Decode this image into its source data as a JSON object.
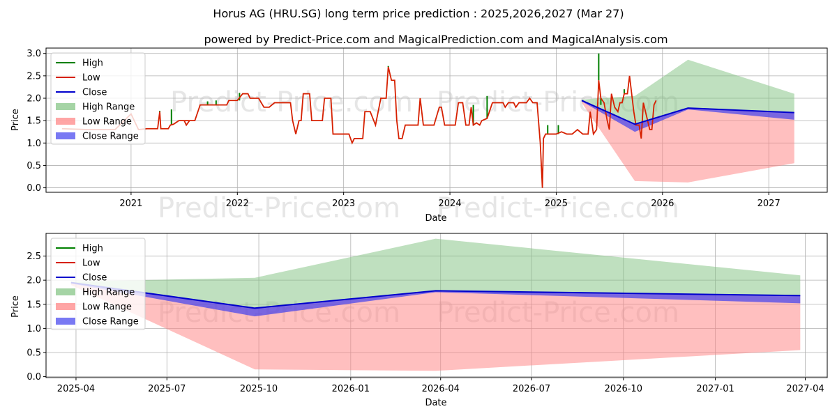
{
  "title": "Horus AG (HRU.SG) long term price prediction : 2025,2026,2027 (Mar 27)",
  "subtitle": "powered by Predict-Price.com and MagicalPrediction.com and MagicalAnalysis.com",
  "watermark": "Predict-Price.com",
  "colors": {
    "high": "#008000",
    "low": "#d62000",
    "close": "#0000cc",
    "high_range": "#7fc27f",
    "low_range": "#ff7f7f",
    "close_range": "#4040ee"
  },
  "legend": {
    "high": "High",
    "low": "Low",
    "close": "Close",
    "high_range": "High Range",
    "low_range": "Low Range",
    "close_range": "Close Range"
  },
  "chart_data": [
    {
      "type": "line",
      "panel": "top",
      "xlabel": "Date",
      "ylabel": "Price",
      "xlim": [
        2020.2,
        2027.55
      ],
      "ylim": [
        -0.1,
        3.12
      ],
      "grid": true,
      "legend_position": "upper-left",
      "x_ticks": [
        2021,
        2022,
        2023,
        2024,
        2025,
        2026,
        2027
      ],
      "x_tick_labels": [
        "2021",
        "2022",
        "2023",
        "2024",
        "2025",
        "2026",
        "2027"
      ],
      "y_ticks": [
        0.0,
        0.5,
        1.0,
        1.5,
        2.0,
        2.5,
        3.0
      ],
      "y_tick_labels": [
        "0.0",
        "0.5",
        "1.0",
        "1.5",
        "2.0",
        "2.5",
        "3.0"
      ],
      "history": {
        "low_close": [
          [
            2020.35,
            1.32
          ],
          [
            2020.6,
            1.3
          ],
          [
            2020.85,
            1.3
          ],
          [
            2021.0,
            1.65
          ],
          [
            2021.07,
            1.3
          ],
          [
            2021.15,
            1.32
          ],
          [
            2021.25,
            1.32
          ],
          [
            2021.27,
            1.7
          ],
          [
            2021.28,
            1.32
          ],
          [
            2021.35,
            1.32
          ],
          [
            2021.37,
            1.4
          ],
          [
            2021.4,
            1.42
          ],
          [
            2021.45,
            1.5
          ],
          [
            2021.5,
            1.5
          ],
          [
            2021.52,
            1.4
          ],
          [
            2021.55,
            1.5
          ],
          [
            2021.5,
            1.5
          ],
          [
            2021.6,
            1.5
          ],
          [
            2021.65,
            1.85
          ],
          [
            2021.7,
            1.85
          ],
          [
            2021.75,
            1.85
          ],
          [
            2021.85,
            1.85
          ],
          [
            2021.9,
            1.85
          ],
          [
            2021.92,
            1.95
          ],
          [
            2022.0,
            1.95
          ],
          [
            2022.05,
            2.1
          ],
          [
            2022.1,
            2.1
          ],
          [
            2022.12,
            2.0
          ],
          [
            2022.2,
            2.0
          ],
          [
            2022.25,
            1.8
          ],
          [
            2022.3,
            1.8
          ],
          [
            2022.35,
            1.9
          ],
          [
            2022.45,
            1.9
          ],
          [
            2022.5,
            1.9
          ],
          [
            2022.52,
            1.5
          ],
          [
            2022.55,
            1.2
          ],
          [
            2022.58,
            1.5
          ],
          [
            2022.6,
            1.5
          ],
          [
            2022.62,
            2.1
          ],
          [
            2022.65,
            2.1
          ],
          [
            2022.68,
            2.1
          ],
          [
            2022.7,
            1.5
          ],
          [
            2022.75,
            1.5
          ],
          [
            2022.8,
            1.5
          ],
          [
            2022.82,
            2.0
          ],
          [
            2022.88,
            2.0
          ],
          [
            2022.9,
            1.2
          ],
          [
            2022.95,
            1.2
          ],
          [
            2023.0,
            1.2
          ],
          [
            2023.05,
            1.2
          ],
          [
            2023.08,
            1.0
          ],
          [
            2023.1,
            1.1
          ],
          [
            2023.15,
            1.1
          ],
          [
            2023.18,
            1.1
          ],
          [
            2023.2,
            1.7
          ],
          [
            2023.25,
            1.7
          ],
          [
            2023.3,
            1.4
          ],
          [
            2023.35,
            2.0
          ],
          [
            2023.4,
            2.0
          ],
          [
            2023.42,
            2.7
          ],
          [
            2023.45,
            2.4
          ],
          [
            2023.48,
            2.4
          ],
          [
            2023.5,
            1.5
          ],
          [
            2023.52,
            1.1
          ],
          [
            2023.55,
            1.1
          ],
          [
            2023.58,
            1.4
          ],
          [
            2023.65,
            1.4
          ],
          [
            2023.7,
            1.4
          ],
          [
            2023.72,
            2.0
          ],
          [
            2023.75,
            1.4
          ],
          [
            2023.8,
            1.4
          ],
          [
            2023.85,
            1.4
          ],
          [
            2023.9,
            1.8
          ],
          [
            2023.92,
            1.8
          ],
          [
            2023.95,
            1.4
          ],
          [
            2024.0,
            1.4
          ],
          [
            2024.05,
            1.4
          ],
          [
            2024.08,
            1.9
          ],
          [
            2024.12,
            1.9
          ],
          [
            2024.15,
            1.4
          ],
          [
            2024.18,
            1.4
          ],
          [
            2024.2,
            1.8
          ],
          [
            2024.22,
            1.4
          ],
          [
            2024.25,
            1.45
          ],
          [
            2024.28,
            1.4
          ],
          [
            2024.3,
            1.5
          ],
          [
            2024.35,
            1.55
          ],
          [
            2024.4,
            1.9
          ],
          [
            2024.5,
            1.9
          ],
          [
            2024.52,
            1.8
          ],
          [
            2024.55,
            1.9
          ],
          [
            2024.6,
            1.9
          ],
          [
            2024.62,
            1.8
          ],
          [
            2024.65,
            1.9
          ],
          [
            2024.72,
            1.9
          ],
          [
            2024.75,
            2.0
          ],
          [
            2024.78,
            1.9
          ],
          [
            2024.82,
            1.9
          ],
          [
            2024.85,
            1.0
          ],
          [
            2024.87,
            0.0
          ],
          [
            2024.88,
            1.1
          ],
          [
            2024.9,
            1.2
          ],
          [
            2024.95,
            1.2
          ],
          [
            2025.0,
            1.2
          ],
          [
            2025.05,
            1.25
          ],
          [
            2025.1,
            1.2
          ],
          [
            2025.15,
            1.2
          ],
          [
            2025.2,
            1.3
          ],
          [
            2025.25,
            1.2
          ],
          [
            2025.3,
            1.2
          ],
          [
            2025.32,
            1.7
          ],
          [
            2025.35,
            1.2
          ],
          [
            2025.38,
            1.3
          ],
          [
            2025.4,
            2.4
          ],
          [
            2025.42,
            2.0
          ],
          [
            2025.45,
            1.9
          ],
          [
            2025.48,
            1.5
          ],
          [
            2025.5,
            1.3
          ],
          [
            2025.52,
            2.1
          ],
          [
            2025.55,
            1.8
          ],
          [
            2025.58,
            1.7
          ],
          [
            2025.6,
            1.9
          ],
          [
            2025.62,
            1.9
          ],
          [
            2025.64,
            2.1
          ],
          [
            2025.67,
            2.1
          ],
          [
            2025.69,
            2.5
          ],
          [
            2025.71,
            2.1
          ],
          [
            2025.73,
            1.7
          ],
          [
            2025.75,
            1.4
          ],
          [
            2025.78,
            1.4
          ],
          [
            2025.8,
            1.1
          ],
          [
            2025.82,
            1.9
          ],
          [
            2025.84,
            1.7
          ],
          [
            2025.86,
            1.5
          ],
          [
            2025.88,
            1.3
          ],
          [
            2025.9,
            1.3
          ],
          [
            2025.92,
            1.85
          ],
          [
            2025.94,
            1.95
          ]
        ],
        "high_spikes": [
          [
            2021.27,
            1.72
          ],
          [
            2021.38,
            1.75
          ],
          [
            2021.72,
            1.93
          ],
          [
            2021.8,
            1.95
          ],
          [
            2022.02,
            2.12
          ],
          [
            2022.63,
            2.1
          ],
          [
            2023.42,
            2.72
          ],
          [
            2024.22,
            1.85
          ],
          [
            2024.35,
            2.05
          ],
          [
            2024.92,
            1.4
          ],
          [
            2025.02,
            1.4
          ],
          [
            2025.4,
            3.0
          ],
          [
            2025.64,
            2.2
          ],
          [
            2025.42,
            1.85
          ]
        ]
      },
      "forecast": {
        "x": [
          2025.24,
          2025.74,
          2026.24,
          2027.24
        ],
        "x_labels": [
          "2025-03-27",
          "2025-09-27",
          "2026-03-27",
          "2027-03-27"
        ],
        "close": [
          1.95,
          1.42,
          1.78,
          1.68
        ],
        "close_lower": [
          1.93,
          1.25,
          1.75,
          1.52
        ],
        "high_upper": [
          1.97,
          2.05,
          2.86,
          2.1
        ],
        "low_lower": [
          1.9,
          0.15,
          0.12,
          0.55
        ]
      }
    },
    {
      "type": "line",
      "panel": "bottom",
      "xlabel": "Date",
      "ylabel": "Price",
      "xlim": [
        "2025-03-02",
        "2027-04-23"
      ],
      "ylim": [
        -0.02,
        2.97
      ],
      "grid": true,
      "legend_position": "upper-left",
      "x_ticks": [
        "2025-04-01",
        "2025-07-01",
        "2025-10-01",
        "2026-01-01",
        "2026-04-01",
        "2026-07-01",
        "2026-10-01",
        "2027-01-01",
        "2027-04-01"
      ],
      "x_tick_labels": [
        "2025-04",
        "2025-07",
        "2025-10",
        "2026-01",
        "2026-04",
        "2026-07",
        "2026-10",
        "2027-01",
        "2027-04"
      ],
      "y_ticks": [
        0.0,
        0.5,
        1.0,
        1.5,
        2.0,
        2.5
      ],
      "y_tick_labels": [
        "0.0",
        "0.5",
        "1.0",
        "1.5",
        "2.0",
        "2.5"
      ],
      "forecast": {
        "x": [
          "2025-03-27",
          "2025-09-27",
          "2026-03-27",
          "2027-03-27"
        ],
        "close": [
          1.95,
          1.42,
          1.78,
          1.68
        ],
        "close_lower": [
          1.93,
          1.25,
          1.75,
          1.52
        ],
        "high_upper": [
          1.97,
          2.05,
          2.86,
          2.1
        ],
        "low_lower": [
          1.9,
          0.15,
          0.12,
          0.55
        ]
      }
    }
  ]
}
